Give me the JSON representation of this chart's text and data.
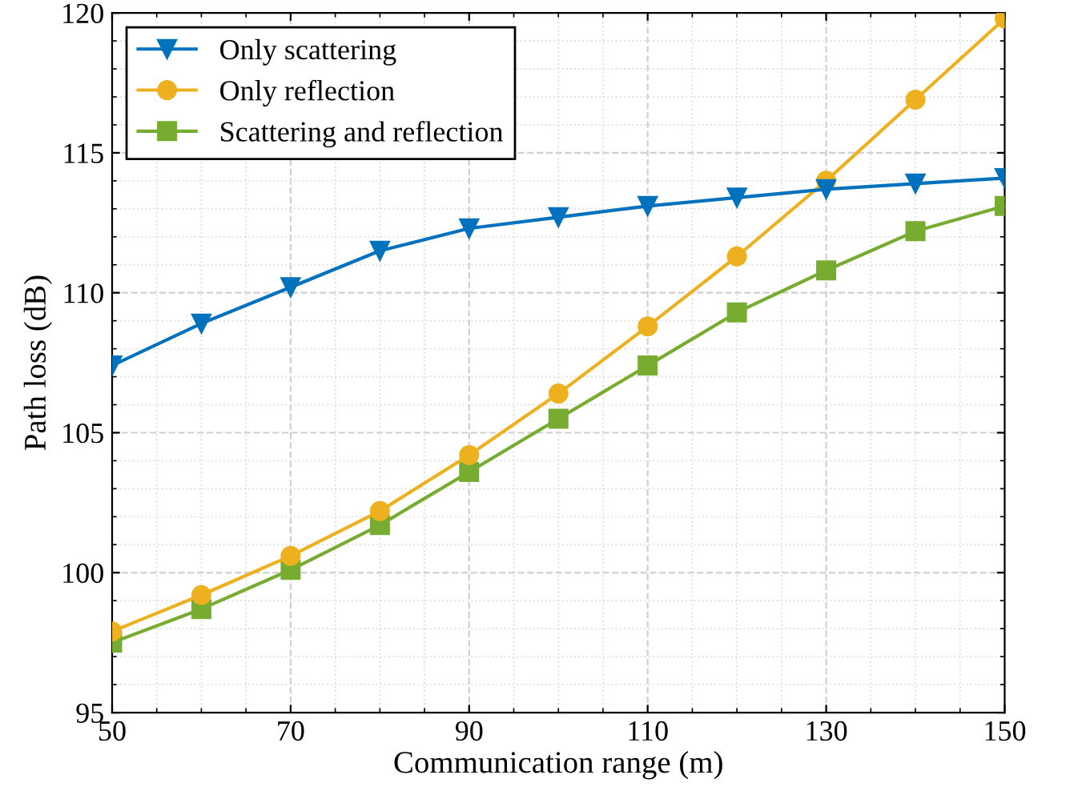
{
  "chart_data": {
    "type": "line",
    "xlabel": "Communication range (m)",
    "ylabel": "Path loss (dB)",
    "x": [
      50,
      60,
      70,
      80,
      90,
      100,
      110,
      120,
      130,
      140,
      150
    ],
    "series": [
      {
        "name": "Only scattering",
        "color": "#0072bd",
        "marker": "triangle",
        "values": [
          107.4,
          108.9,
          110.2,
          111.5,
          112.3,
          112.7,
          113.1,
          113.4,
          113.7,
          113.9,
          114.1
        ]
      },
      {
        "name": "Only reflection",
        "color": "#edb120",
        "marker": "circle",
        "values": [
          97.9,
          99.2,
          100.6,
          102.2,
          104.2,
          106.4,
          108.8,
          111.3,
          114.0,
          116.9,
          119.8
        ]
      },
      {
        "name": "Scattering and reflection",
        "color": "#77ac30",
        "marker": "square",
        "values": [
          97.5,
          98.7,
          100.1,
          101.7,
          103.6,
          105.5,
          107.4,
          109.3,
          110.8,
          112.2,
          113.1
        ]
      }
    ],
    "xlim": [
      50,
      150
    ],
    "xticks": [
      50,
      70,
      90,
      110,
      130,
      150
    ],
    "ylim": [
      95,
      120
    ],
    "yticks": [
      95,
      100,
      105,
      110,
      115,
      120
    ],
    "grid": true,
    "legend": "top left",
    "line_style": "solid"
  }
}
